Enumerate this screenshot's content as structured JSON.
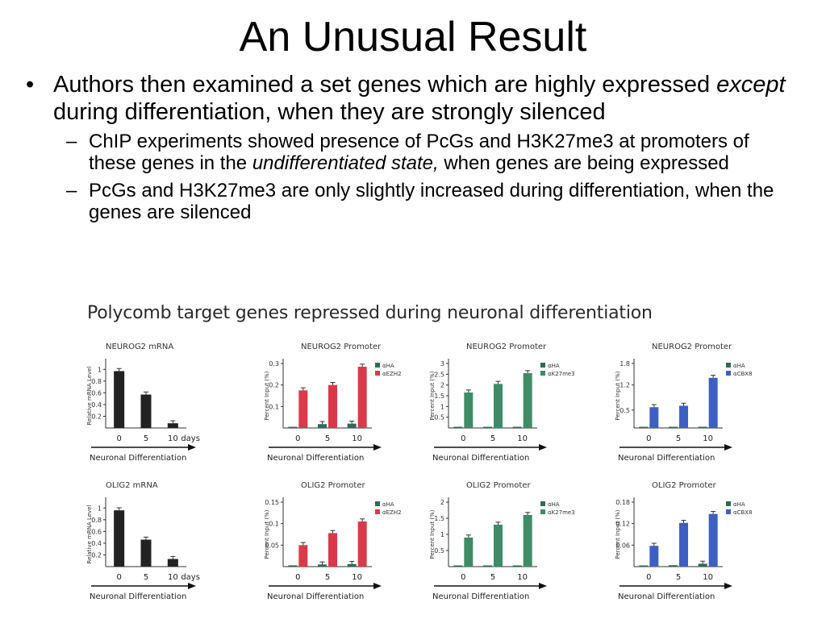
{
  "slide": {
    "title": "An Unusual Result",
    "bullet_main": {
      "p1": "Authors then examined a set genes which are highly expressed ",
      "em": "except",
      "p2": " during differentiation, when they are strongly silenced"
    },
    "sub1": {
      "p1": "ChIP experiments showed presence of PcGs and H3K27me3 at promoters of these genes in the ",
      "em": "undifferentiated state,",
      "p2": " when genes are being expressed"
    },
    "sub2": "PcGs and H3K27me3 are only slightly increased during differentiation, when the genes are silenced",
    "bullet_mark": "•",
    "dash_mark": "–"
  },
  "figure": {
    "title": "Polycomb target genes repressed during neuronal differentiation"
  },
  "chart_data": [
    {
      "type": "bar",
      "title": "NEUROG2 mRNA",
      "ylabel": "Relative mRNA Level",
      "xlabel": "Neuronal Differentiation",
      "categories": [
        "0",
        "5",
        "10"
      ],
      "x_suffix": "days",
      "ylim": [
        0,
        1.1
      ],
      "yticks": [
        "0.2",
        "0.4",
        "0.6",
        "0.8",
        "1"
      ],
      "series": [
        {
          "values": [
            0.97,
            0.57,
            0.08
          ],
          "color": "#222222"
        }
      ]
    },
    {
      "type": "bar",
      "title": "NEUROG2 Promoter",
      "ylabel": "Percent Input (%)",
      "xlabel": "Neuronal Differentiation",
      "categories": [
        "0",
        "5",
        "10"
      ],
      "ylim": [
        0,
        0.3
      ],
      "yticks": [
        "0.1",
        "0.2",
        "0.3"
      ],
      "series": [
        {
          "name": "αHA",
          "values": [
            0.005,
            0.018,
            0.02
          ],
          "color": "#2e6b57"
        },
        {
          "name": "αEZH2",
          "values": [
            0.175,
            0.2,
            0.285
          ],
          "color": "#d93a4a"
        }
      ]
    },
    {
      "type": "bar",
      "title": "NEUROG2 Promoter",
      "ylabel": "Percent Input (%)",
      "xlabel": "Neuronal Differentiation",
      "categories": [
        "0",
        "5",
        "10"
      ],
      "ylim": [
        0,
        3
      ],
      "yticks": [
        "0.5",
        "1",
        "1.5",
        "2",
        "2.5",
        "3"
      ],
      "series": [
        {
          "name": "αHA",
          "values": [
            0.01,
            0.01,
            0.01
          ],
          "color": "#2e6b57"
        },
        {
          "name": "αK27me3",
          "values": [
            1.65,
            2.05,
            2.55
          ],
          "color": "#3d8c66"
        }
      ]
    },
    {
      "type": "bar",
      "title": "NEUROG2 Promoter",
      "ylabel": "Percent Input (%)",
      "xlabel": "Neuronal Differentiation",
      "categories": [
        "0",
        "5",
        "10"
      ],
      "ylim": [
        0,
        1.8
      ],
      "yticks": [
        "0.5",
        "1.2",
        "1.8"
      ],
      "series": [
        {
          "name": "αHA",
          "values": [
            0.01,
            0.01,
            0.02
          ],
          "color": "#2e6b57"
        },
        {
          "name": "αCBX8",
          "values": [
            0.58,
            0.62,
            1.4
          ],
          "color": "#3d5fc4"
        }
      ]
    },
    {
      "type": "bar",
      "title": "OLIG2 mRNA",
      "ylabel": "Relative mRNA Level",
      "xlabel": "Neuronal Differentiation",
      "categories": [
        "0",
        "5",
        "10"
      ],
      "x_suffix": "days",
      "ylim": [
        0,
        1.1
      ],
      "yticks": [
        "0.2",
        "0.4",
        "0.6",
        "0.8",
        "1"
      ],
      "series": [
        {
          "values": [
            0.96,
            0.46,
            0.13
          ],
          "color": "#222222"
        }
      ]
    },
    {
      "type": "bar",
      "title": "OLIG2 Promoter",
      "ylabel": "Percent Input (%)",
      "xlabel": "Neuronal Differentiation",
      "categories": [
        "0",
        "5",
        "10"
      ],
      "ylim": [
        0,
        0.15
      ],
      "yticks": [
        "0.05",
        "0.1",
        "0.15"
      ],
      "series": [
        {
          "name": "αHA",
          "values": [
            0.003,
            0.005,
            0.006
          ],
          "color": "#2e6b57"
        },
        {
          "name": "αEZH2",
          "values": [
            0.05,
            0.078,
            0.105
          ],
          "color": "#d93a4a"
        }
      ]
    },
    {
      "type": "bar",
      "title": "OLIG2 Promoter",
      "ylabel": "Percent Input (%)",
      "xlabel": "Neuronal Differentiation",
      "categories": [
        "0",
        "5",
        "10"
      ],
      "ylim": [
        0,
        2
      ],
      "yticks": [
        "0.5",
        "1",
        "1.5",
        "2"
      ],
      "series": [
        {
          "name": "αHA",
          "values": [
            0.01,
            0.01,
            0.01
          ],
          "color": "#2e6b57"
        },
        {
          "name": "αK27me3",
          "values": [
            0.9,
            1.3,
            1.6
          ],
          "color": "#3d8c66"
        }
      ]
    },
    {
      "type": "bar",
      "title": "OLIG2 Promoter",
      "ylabel": "Percent Input (%)",
      "xlabel": "Neuronal Differentiation",
      "categories": [
        "0",
        "5",
        "10"
      ],
      "ylim": [
        0,
        0.18
      ],
      "yticks": [
        "0.06",
        "0.12",
        "0.18"
      ],
      "series": [
        {
          "name": "αHA",
          "values": [
            0.003,
            0.004,
            0.008
          ],
          "color": "#2e6b57"
        },
        {
          "name": "αCBX8",
          "values": [
            0.058,
            0.122,
            0.147
          ],
          "color": "#3d5fc4"
        }
      ]
    }
  ]
}
